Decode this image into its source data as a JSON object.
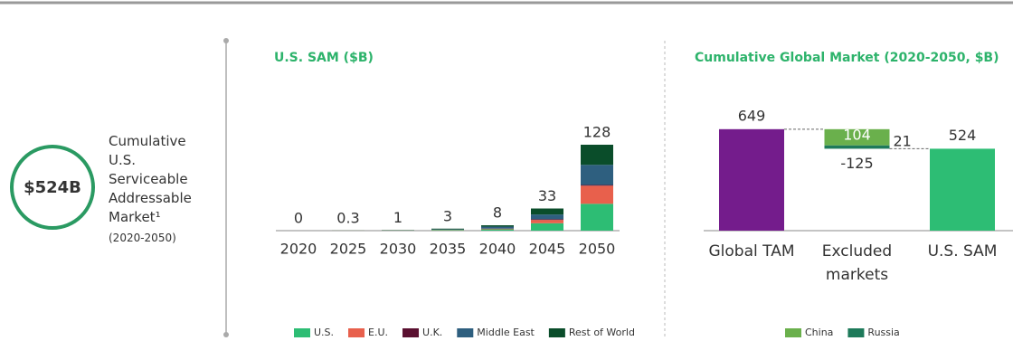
{
  "callout": {
    "value": "$524B",
    "label": "Cumulative U.S. Serviceable Addressable Market¹",
    "period": "(2020-2050)"
  },
  "chart_data": [
    {
      "type": "stacked-bar",
      "title": "U.S. SAM ($B)",
      "categories": [
        "2020",
        "2025",
        "2030",
        "2035",
        "2040",
        "2045",
        "2050"
      ],
      "totals": [
        0,
        0.3,
        1,
        3,
        8,
        33,
        128
      ],
      "series": [
        {
          "name": "U.S.",
          "color": "#2dbd74",
          "values": [
            0,
            0.1,
            0.4,
            1,
            2,
            11,
            40
          ]
        },
        {
          "name": "E.U.",
          "color": "#e8604c",
          "values": [
            0,
            0.1,
            0.2,
            0.5,
            1,
            5,
            27
          ]
        },
        {
          "name": "U.K.",
          "color": "#5a1030",
          "values": [
            0,
            0,
            0,
            0,
            0,
            1,
            1
          ]
        },
        {
          "name": "Middle East",
          "color": "#2e5f7f",
          "values": [
            0,
            0,
            0.2,
            0.5,
            3,
            7,
            30
          ]
        },
        {
          "name": "Rest of World",
          "color": "#0a4d2a",
          "values": [
            0,
            0.1,
            0.2,
            1,
            2,
            9,
            30
          ]
        }
      ],
      "ylim": [
        0,
        128
      ]
    },
    {
      "type": "waterfall",
      "title": "Cumulative Global Market (2020-2050, $B)",
      "categories": [
        "Global TAM",
        "Excluded markets",
        "U.S. SAM"
      ],
      "values": [
        649,
        -125,
        524
      ],
      "colors": [
        "#741c8c",
        null,
        "#2dbd74"
      ],
      "series": [
        {
          "name": "China",
          "color": "#6ab04c",
          "values": [
            null,
            104,
            null
          ]
        },
        {
          "name": "Russia",
          "color": "#1e7a5a",
          "values": [
            null,
            21,
            null
          ]
        }
      ],
      "ylim": [
        0,
        700
      ]
    }
  ]
}
